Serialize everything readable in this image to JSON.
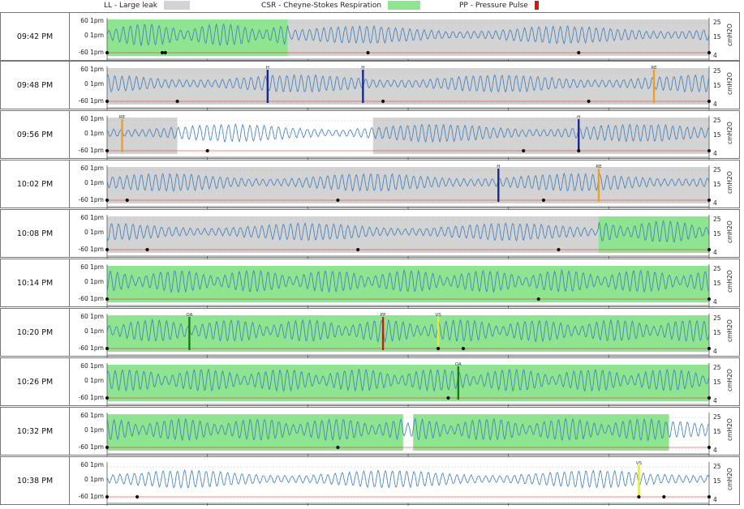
{
  "legend": [
    {
      "label": "LL - Large leak",
      "color": "#d3d3d3"
    },
    {
      "label": "CSR - Cheyne-Stokes Respiration",
      "color": "#8fe58f"
    },
    {
      "label": "PP - Pressure Pulse",
      "color": "#e01010"
    }
  ],
  "axes": {
    "left_ticks": [
      "60  1pm",
      "0  1pm",
      "-60  1pm"
    ],
    "right_ticks": [
      "25",
      "15",
      "4"
    ],
    "right_unit": "cmH2O"
  },
  "colors": {
    "flow": "#3a7bbf",
    "pressure": "#e03030",
    "leak": "#d3d3d3",
    "csr": "#8fe58f",
    "obstructive": "#1a2a8a",
    "resp_effort": "#f0a020",
    "clear_airway": "#1a7a1a",
    "vibratory_snore": "#e8e830",
    "pressure_pulse": "#e01010"
  },
  "chart_data": [
    {
      "type": "line",
      "time": "09:42 PM",
      "period_min": 6,
      "shading": [
        {
          "kind": "LL",
          "start": 0.3,
          "end": 6.0
        },
        {
          "kind": "CSR",
          "start": 0.0,
          "end": 1.8
        }
      ],
      "events": [],
      "dots": [
        0.0,
        0.55,
        0.58,
        2.6,
        4.7,
        6.0
      ]
    },
    {
      "type": "line",
      "time": "09:48 PM",
      "period_min": 6,
      "shading": [
        {
          "kind": "LL",
          "start": 0.0,
          "end": 6.0
        }
      ],
      "events": [
        {
          "code": "H",
          "t": 1.6
        },
        {
          "code": "H",
          "t": 2.55
        },
        {
          "code": "RE",
          "t": 5.45
        }
      ],
      "dots": [
        0.0,
        0.7,
        2.75,
        4.8,
        6.0
      ]
    },
    {
      "type": "line",
      "time": "09:56 PM",
      "period_min": 6,
      "shading": [
        {
          "kind": "LL",
          "start": 0.0,
          "end": 0.7
        },
        {
          "kind": "LL",
          "start": 2.65,
          "end": 6.0
        }
      ],
      "events": [
        {
          "code": "RE",
          "t": 0.15
        },
        {
          "code": "H",
          "t": 4.7
        }
      ],
      "dots": [
        0.0,
        1.0,
        4.15,
        4.7,
        6.0
      ]
    },
    {
      "type": "line",
      "time": "10:02 PM",
      "period_min": 6,
      "shading": [
        {
          "kind": "LL",
          "start": 0.0,
          "end": 6.0
        }
      ],
      "events": [
        {
          "code": "H",
          "t": 3.9
        },
        {
          "code": "RE",
          "t": 4.9
        }
      ],
      "dots": [
        0.0,
        0.2,
        2.3,
        4.35,
        6.0
      ]
    },
    {
      "type": "line",
      "time": "10:08 PM",
      "period_min": 6,
      "shading": [
        {
          "kind": "LL",
          "start": 0.0,
          "end": 4.9
        },
        {
          "kind": "CSR",
          "start": 4.9,
          "end": 6.0
        }
      ],
      "events": [],
      "dots": [
        0.0,
        0.4,
        2.5,
        4.5,
        6.0
      ]
    },
    {
      "type": "line",
      "time": "10:14 PM",
      "period_min": 6,
      "shading": [
        {
          "kind": "CSR",
          "start": 0.0,
          "end": 6.0
        }
      ],
      "events": [],
      "dots": [
        0.0,
        4.3,
        6.0
      ]
    },
    {
      "type": "line",
      "time": "10:20 PM",
      "period_min": 6,
      "shading": [
        {
          "kind": "CSR",
          "start": 0.0,
          "end": 6.0
        }
      ],
      "events": [
        {
          "code": "OA",
          "t": 0.82
        },
        {
          "code": "PP",
          "t": 2.75
        },
        {
          "code": "VS",
          "t": 3.3
        }
      ],
      "dots": [
        0.0,
        3.3,
        3.55,
        6.0
      ]
    },
    {
      "type": "line",
      "time": "10:26 PM",
      "period_min": 6,
      "shading": [
        {
          "kind": "CSR",
          "start": 0.0,
          "end": 6.0
        }
      ],
      "events": [
        {
          "code": "OA",
          "t": 3.5
        }
      ],
      "dots": [
        0.0,
        3.4,
        6.0
      ]
    },
    {
      "type": "line",
      "time": "10:32 PM",
      "period_min": 6,
      "shading": [
        {
          "kind": "CSR",
          "start": 0.0,
          "end": 2.95
        },
        {
          "kind": "CSR",
          "start": 3.05,
          "end": 5.6
        }
      ],
      "events": [],
      "dots": [
        0.0,
        2.3,
        6.0
      ]
    },
    {
      "type": "line",
      "time": "10:38 PM",
      "period_min": 6,
      "shading": [],
      "events": [
        {
          "code": "VS",
          "t": 5.3
        }
      ],
      "dots": [
        0.0,
        0.3,
        5.3,
        5.55,
        6.0
      ]
    }
  ]
}
